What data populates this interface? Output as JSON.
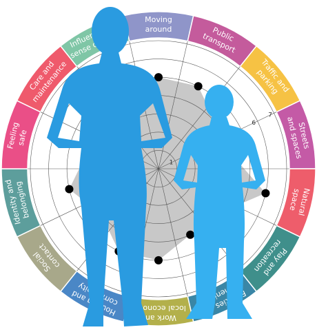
{
  "chart_data": {
    "type": "radar",
    "categories": [
      [
        "Moving",
        "around"
      ],
      [
        "Public",
        "transport"
      ],
      [
        "Traffic and",
        "parking"
      ],
      [
        "Streets",
        "and spaces"
      ],
      [
        "Natural",
        "space"
      ],
      [
        "Play and",
        "recreation"
      ],
      [
        "Facilities and",
        "amenities"
      ],
      [
        "Work and",
        "local economy"
      ],
      [
        "Housing and",
        "community"
      ],
      [
        "Social",
        "contact"
      ],
      [
        "Identity and",
        "belonging"
      ],
      [
        "Feeling",
        "safe"
      ],
      [
        "Care and",
        "maintenance"
      ],
      [
        "Influence and",
        "sense of control"
      ]
    ],
    "values": [
      5,
      5,
      4,
      4,
      6,
      4,
      4,
      5,
      5,
      4,
      5,
      4,
      5,
      4
    ],
    "colors": [
      "#8f95c9",
      "#c45b9c",
      "#f6c244",
      "#c45aa6",
      "#ee5d6b",
      "#3f8f8b",
      "#3a86a6",
      "#b3b04b",
      "#4a87c6",
      "#a8a88a",
      "#5d9e9c",
      "#ea4f87",
      "#ef5a6c",
      "#7fc6a6"
    ],
    "area_color": "#c8c8c8",
    "rlim": [
      0,
      7
    ],
    "rticks": [
      1,
      2,
      3,
      4,
      5,
      6,
      7
    ]
  }
}
